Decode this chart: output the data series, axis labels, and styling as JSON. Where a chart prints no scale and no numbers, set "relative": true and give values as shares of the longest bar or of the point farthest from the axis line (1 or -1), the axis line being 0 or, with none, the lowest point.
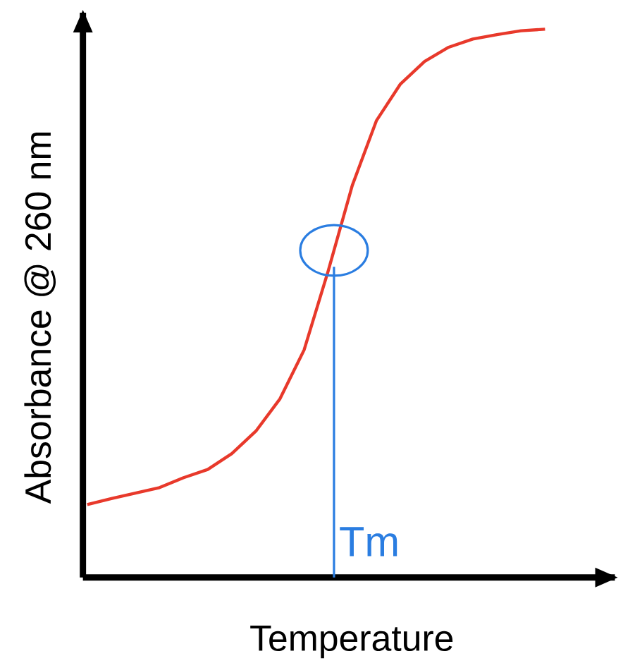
{
  "chart_data": {
    "type": "line",
    "relative": true,
    "xlabel": "Temperature",
    "ylabel": "Absorbance @ 260 nm",
    "categories": [
      null,
      null,
      null,
      null,
      null,
      null,
      null,
      null,
      null,
      null,
      null,
      null,
      null,
      null,
      null,
      null,
      null,
      null,
      null,
      null
    ],
    "series": [
      {
        "color": "#e8392b",
        "values": [
          0.133,
          0.144,
          0.154,
          0.164,
          0.182,
          0.197,
          0.226,
          0.267,
          0.326,
          0.415,
          0.559,
          0.715,
          0.833,
          0.9,
          0.941,
          0.967,
          0.982,
          0.99,
          0.997,
          1.0
        ]
      }
    ],
    "annotations": [
      "Tm"
    ],
    "marker": "none",
    "line_style": "solid"
  }
}
